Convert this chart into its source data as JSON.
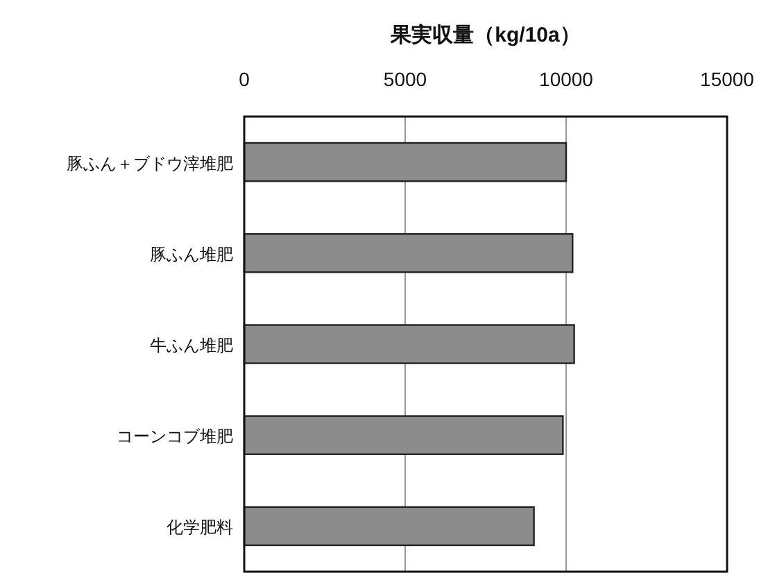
{
  "chart_data": {
    "type": "bar",
    "orientation": "horizontal",
    "xlabel": "果実収量（kg/10a）",
    "categories": [
      "豚ふん＋ブドウ滓堆肥",
      "豚ふん堆肥",
      "牛ふん堆肥",
      "コーンコブ堆肥",
      "化学肥料"
    ],
    "values": [
      10000,
      10200,
      10250,
      9900,
      9000
    ],
    "color": "#8c8c8c",
    "xlim": [
      0,
      15000
    ],
    "xticks": [
      0,
      5000,
      10000,
      15000
    ],
    "grid": "x"
  }
}
